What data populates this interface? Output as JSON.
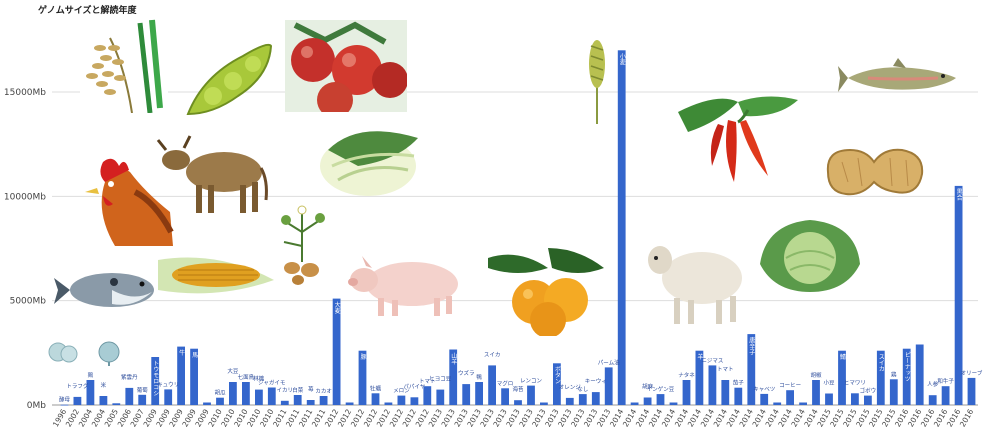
{
  "chart_data": {
    "type": "bar",
    "title": "ゲノムサイズと解読年度",
    "xlabel": "",
    "ylabel": "",
    "ylim": [
      0,
      18000
    ],
    "yticks": [
      0,
      5000,
      10000,
      15000
    ],
    "ytick_labels": [
      "0Mb",
      "5000Mb",
      "10000Mb",
      "15000Mb"
    ],
    "grid": true,
    "legend": "none",
    "bar_color": "#3466cc",
    "bars": [
      {
        "year": "1996",
        "label": "酵母",
        "value": 12
      },
      {
        "year": "2002",
        "label": "トラフグ",
        "value": 390
      },
      {
        "year": "2004",
        "label": "鶏",
        "value": 1200
      },
      {
        "year": "2004",
        "label": "米",
        "value": 430
      },
      {
        "year": "2005",
        "label": "",
        "value": 80
      },
      {
        "year": "2006",
        "label": "紫雲丹",
        "value": 820
      },
      {
        "year": "2007",
        "label": "葡萄",
        "value": 490
      },
      {
        "year": "2009",
        "label": "トウモロコシ",
        "value": 2300
      },
      {
        "year": "2009",
        "label": "キュウリ",
        "value": 750
      },
      {
        "year": "2009",
        "label": "牛",
        "value": 2800
      },
      {
        "year": "2009",
        "label": "馬",
        "value": 2700
      },
      {
        "year": "2009",
        "label": "",
        "value": 120
      },
      {
        "year": "2010",
        "label": "胡瓜",
        "value": 350
      },
      {
        "year": "2010",
        "label": "大豆",
        "value": 1100
      },
      {
        "year": "2010",
        "label": "七面鳥",
        "value": 1100
      },
      {
        "year": "2010",
        "label": "林檎",
        "value": 740
      },
      {
        "year": "2010",
        "label": "ジャガイモ",
        "value": 840
      },
      {
        "year": "2011",
        "label": "イカリ",
        "value": 200
      },
      {
        "year": "2011",
        "label": "白菜",
        "value": 480
      },
      {
        "year": "2011",
        "label": "苺",
        "value": 240
      },
      {
        "year": "2011",
        "label": "カカオ",
        "value": 430
      },
      {
        "year": "2012",
        "label": "大麦",
        "value": 5100
      },
      {
        "year": "2012",
        "label": "",
        "value": 120
      },
      {
        "year": "2012",
        "label": "豚",
        "value": 2600
      },
      {
        "year": "2012",
        "label": "牡蠣",
        "value": 560
      },
      {
        "year": "2012",
        "label": "",
        "value": 120
      },
      {
        "year": "2012",
        "label": "メロン",
        "value": 450
      },
      {
        "year": "2012",
        "label": "パパイヤ",
        "value": 370
      },
      {
        "year": "2012",
        "label": "トマト",
        "value": 900
      },
      {
        "year": "2013",
        "label": "ヒヨコ豆",
        "value": 740
      },
      {
        "year": "2013",
        "label": "山羊",
        "value": 2660
      },
      {
        "year": "2013",
        "label": "ウズラ",
        "value": 1000
      },
      {
        "year": "2013",
        "label": "鴨",
        "value": 1100
      },
      {
        "year": "2013",
        "label": "スイカ",
        "value": 1900
      },
      {
        "year": "2013",
        "label": "マグロ",
        "value": 800
      },
      {
        "year": "2013",
        "label": "海苔",
        "value": 230
      },
      {
        "year": "2013",
        "label": "レンコン",
        "value": 930
      },
      {
        "year": "2013",
        "label": "",
        "value": 120
      },
      {
        "year": "2013",
        "label": "ボタン",
        "value": 2000
      },
      {
        "year": "2013",
        "label": "オレンジ",
        "value": 340
      },
      {
        "year": "2013",
        "label": "なし",
        "value": 520
      },
      {
        "year": "2013",
        "label": "キーウィ",
        "value": 620
      },
      {
        "year": "2013",
        "label": "パーム油",
        "value": 1800
      },
      {
        "year": "2014",
        "label": "小麦",
        "value": 17000
      },
      {
        "year": "2014",
        "label": "",
        "value": 120
      },
      {
        "year": "2014",
        "label": "胡麻",
        "value": 360
      },
      {
        "year": "2014",
        "label": "インゲン豆",
        "value": 520
      },
      {
        "year": "2014",
        "label": "",
        "value": 120
      },
      {
        "year": "2014",
        "label": "ナタネ",
        "value": 1200
      },
      {
        "year": "2014",
        "label": "羊",
        "value": 2600
      },
      {
        "year": "2014",
        "label": "ニジマス",
        "value": 1900
      },
      {
        "year": "2014",
        "label": "トマト",
        "value": 1200
      },
      {
        "year": "2014",
        "label": "茄子",
        "value": 830
      },
      {
        "year": "2014",
        "label": "唐辛子",
        "value": 3400
      },
      {
        "year": "2014",
        "label": "キャベツ",
        "value": 530
      },
      {
        "year": "2014",
        "label": "",
        "value": 120
      },
      {
        "year": "2014",
        "label": "コーヒー",
        "value": 710
      },
      {
        "year": "2014",
        "label": "",
        "value": 120
      },
      {
        "year": "2014",
        "label": "胡椒",
        "value": 1200
      },
      {
        "year": "2015",
        "label": "小豆",
        "value": 550
      },
      {
        "year": "2015",
        "label": "鯖",
        "value": 2600
      },
      {
        "year": "2015",
        "label": "ヒマワリ",
        "value": 560
      },
      {
        "year": "2015",
        "label": "ゴボウ",
        "value": 450
      },
      {
        "year": "2015",
        "label": "スイカ",
        "value": 2600
      },
      {
        "year": "2015",
        "label": "鶏",
        "value": 1230
      },
      {
        "year": "2016",
        "label": "ピーナッツ",
        "value": 2700
      },
      {
        "year": "2016",
        "label": "",
        "value": 2900
      },
      {
        "year": "2016",
        "label": "人参",
        "value": 470
      },
      {
        "year": "2016",
        "label": "和牛子",
        "value": 900
      },
      {
        "year": "2016",
        "label": "黒合",
        "value": 10500
      },
      {
        "year": "2016",
        "label": "オリーブ",
        "value": 1300
      }
    ]
  },
  "illustrations": [
    {
      "name": "rice-image",
      "subject": "稲穂"
    },
    {
      "name": "soybean-pod-image",
      "subject": "枝豆"
    },
    {
      "name": "apple-image",
      "subject": "林檎"
    },
    {
      "name": "wheat-image",
      "subject": "小麦"
    },
    {
      "name": "rooster-image",
      "subject": "鶏"
    },
    {
      "name": "cow-image",
      "subject": "牛"
    },
    {
      "name": "napa-cabbage-image",
      "subject": "白菜"
    },
    {
      "name": "chili-pepper-image",
      "subject": "唐辛子"
    },
    {
      "name": "trout-image",
      "subject": "ニジマス"
    },
    {
      "name": "peanut-image",
      "subject": "ピーナッツ"
    },
    {
      "name": "potato-plant-image",
      "subject": "ジャガイモ"
    },
    {
      "name": "corn-image",
      "subject": "トウモロコシ"
    },
    {
      "name": "pufferfish-image",
      "subject": "トラフグ"
    },
    {
      "name": "pig-image",
      "subject": "豚"
    },
    {
      "name": "orange-image",
      "subject": "オレンジ"
    },
    {
      "name": "sheep-image",
      "subject": "羊"
    },
    {
      "name": "cabbage-image",
      "subject": "キャベツ"
    },
    {
      "name": "yeast-cell-image",
      "subject": "酵母"
    },
    {
      "name": "mold-cell-image",
      "subject": "麹菌"
    }
  ]
}
